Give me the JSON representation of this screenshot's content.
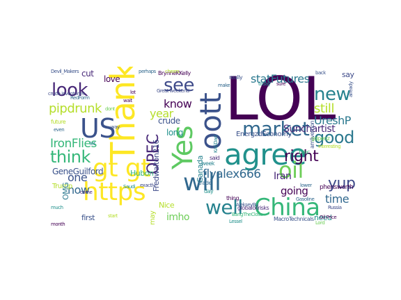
{
  "words": [
    {
      "text": "LOL",
      "color": "#440154"
    },
    {
      "text": "Thank",
      "color": "#fde725"
    },
    {
      "text": "oott",
      "color": "#3b528b"
    },
    {
      "text": "agree",
      "color": "#21918c"
    },
    {
      "text": "Yes",
      "color": "#5ec962"
    },
    {
      "text": "US",
      "color": "#3b528b"
    },
    {
      "text": "gt gt",
      "color": "#fde725"
    },
    {
      "text": "https",
      "color": "#fde725"
    },
    {
      "text": "will",
      "color": "#31688e"
    },
    {
      "text": "China",
      "color": "#35b779"
    },
    {
      "text": "market",
      "color": "#31688e"
    },
    {
      "text": "oil",
      "color": "#6ece58"
    },
    {
      "text": "look",
      "color": "#482878"
    },
    {
      "text": "see",
      "color": "#3e4a89"
    },
    {
      "text": "new",
      "color": "#26828e"
    },
    {
      "text": "good",
      "color": "#2a788e"
    },
    {
      "text": "think",
      "color": "#35b779"
    },
    {
      "text": "right",
      "color": "#440154"
    },
    {
      "text": "well",
      "color": "#26828e"
    },
    {
      "text": "yup",
      "color": "#3e4a89"
    },
    {
      "text": "OPEC",
      "color": "#482878"
    },
    {
      "text": "still",
      "color": "#b5de2b"
    },
    {
      "text": "pipdrunk",
      "color": "#b5de2b"
    },
    {
      "text": "IronFlies",
      "color": "#35b779"
    },
    {
      "text": "flyalex666",
      "color": "#31688e"
    },
    {
      "text": "statFutures",
      "color": "#2a788e"
    },
    {
      "text": "time",
      "color": "#31688e"
    },
    {
      "text": "know",
      "color": "#440154"
    },
    {
      "text": "year",
      "color": "#b5de2b"
    },
    {
      "text": "imho",
      "color": "#6ece58"
    },
    {
      "text": "one",
      "color": "#3b528b"
    },
    {
      "text": "now",
      "color": "#31688e"
    },
    {
      "text": "going",
      "color": "#440154"
    },
    {
      "text": "UreshP",
      "color": "#2a788e"
    },
    {
      "text": "Iran",
      "color": "#482878"
    },
    {
      "text": "Sunchartist",
      "color": "#482878"
    },
    {
      "text": "EnergzdEconomy",
      "color": "#3b528b"
    },
    {
      "text": "GeneGuilford",
      "color": "#3b528b"
    },
    {
      "text": "Fredwalton216",
      "color": "#3e4a89"
    },
    {
      "text": "crude",
      "color": "#3b528b"
    },
    {
      "text": "long",
      "color": "#21918c"
    },
    {
      "text": "cut",
      "color": "#482878"
    },
    {
      "text": "love",
      "color": "#440154"
    },
    {
      "text": "Hubon",
      "color": "#35b779"
    },
    {
      "text": "Canada",
      "color": "#26828e"
    },
    {
      "text": "Trump",
      "color": "#b5de2b"
    },
    {
      "text": "OMG",
      "color": "#2a788e"
    },
    {
      "text": "Nice",
      "color": "#b5de2b"
    },
    {
      "text": "first",
      "color": "#3b528b"
    },
    {
      "text": "may",
      "color": "#b5de2b"
    },
    {
      "text": "need",
      "color": "#21918c"
    },
    {
      "text": "say",
      "color": "#3e4a89"
    },
    {
      "text": "Dec",
      "color": "#35b779"
    },
    {
      "text": "BrynneKKelly",
      "color": "#440154"
    },
    {
      "text": "said",
      "color": "#482878"
    },
    {
      "text": "trade",
      "color": "#31688e"
    },
    {
      "text": "week",
      "color": "#26828e"
    },
    {
      "text": "day",
      "color": "#21918c"
    },
    {
      "text": "thing",
      "color": "#440154"
    },
    {
      "text": "really",
      "color": "#3b528b"
    },
    {
      "text": "cheers",
      "color": "#b5de2b"
    },
    {
      "text": "perhaps",
      "color": "#31688e"
    },
    {
      "text": "Great weekend",
      "color": "#3e4a89"
    },
    {
      "text": "amlivemon",
      "color": "#3b528b"
    },
    {
      "text": "phenswerth",
      "color": "#440154"
    },
    {
      "text": "globaloilrisks",
      "color": "#482878"
    },
    {
      "text": "gdpenz",
      "color": "#6ece58"
    },
    {
      "text": "KASDad",
      "color": "#26828e"
    },
    {
      "text": "AlekseyBu",
      "color": "#3b528b"
    },
    {
      "text": "BangTheClose",
      "color": "#35b779"
    },
    {
      "text": "MacroTechnicals",
      "color": "#3b528b"
    },
    {
      "text": "crude inventories",
      "color": "#3e4a89"
    },
    {
      "text": "future",
      "color": "#b5de2b"
    },
    {
      "text": "even",
      "color": "#31688e"
    },
    {
      "text": "Saudi",
      "color": "#21918c"
    },
    {
      "text": "month",
      "color": "#440154"
    },
    {
      "text": "start",
      "color": "#b5de2b"
    },
    {
      "text": "back",
      "color": "#3b528b"
    },
    {
      "text": "today",
      "color": "#21918c"
    },
    {
      "text": "sure",
      "color": "#440154"
    },
    {
      "text": "lower",
      "color": "#31688e"
    },
    {
      "text": "Russia",
      "color": "#3e4a89"
    },
    {
      "text": "Lord",
      "color": "#6ece58"
    },
    {
      "text": "make",
      "color": "#31688e"
    },
    {
      "text": "lot",
      "color": "#440154"
    },
    {
      "text": "way",
      "color": "#3b528b"
    },
    {
      "text": "let",
      "color": "#26828e"
    },
    {
      "text": "come",
      "color": "#482878"
    },
    {
      "text": "much",
      "color": "#21918c"
    },
    {
      "text": "Gasoline",
      "color": "#31688e"
    },
    {
      "text": "already",
      "color": "#3b528b"
    },
    {
      "text": "interesting",
      "color": "#b5de2b"
    },
    {
      "text": "exactly",
      "color": "#3e4a89"
    },
    {
      "text": "wait",
      "color": "#440154"
    },
    {
      "text": "Lessel",
      "color": "#21918c"
    },
    {
      "text": "dont",
      "color": "#6ece58"
    },
    {
      "text": "Oil Price",
      "color": "#440154"
    },
    {
      "text": "Devil_Makers",
      "color": "#3b528b"
    },
    {
      "text": "RedForm",
      "color": "#31688e"
    }
  ]
}
